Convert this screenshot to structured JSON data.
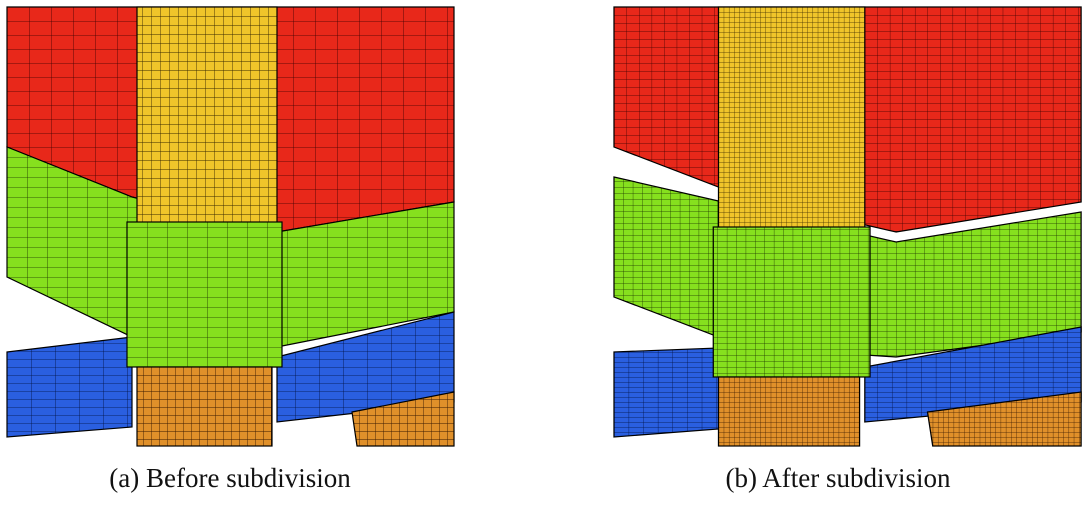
{
  "figure": {
    "panels": [
      {
        "caption": "(a) Before subdivision"
      },
      {
        "caption": "(b) After subdivision"
      }
    ]
  }
}
